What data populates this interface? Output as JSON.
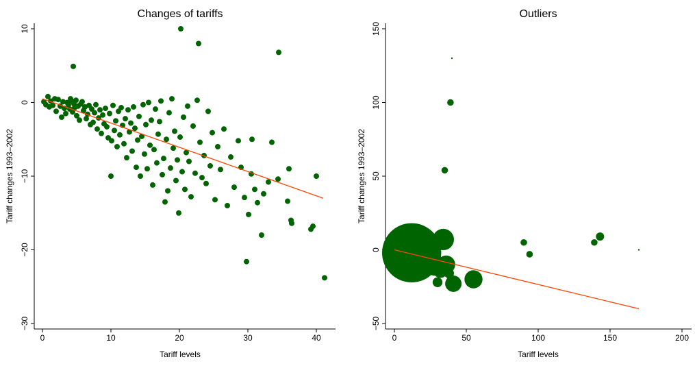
{
  "chart_data": [
    {
      "type": "scatter",
      "title": "Changes of tariffs",
      "xlabel": "Tariff levels",
      "ylabel": "Tariff changes 1993–2002",
      "xlim": [
        0,
        42
      ],
      "ylim": [
        -30,
        10
      ],
      "xticks": [
        "0",
        "10",
        "20",
        "30",
        "40"
      ],
      "yticks": [
        "10",
        "0",
        "−10",
        "−20",
        "−30"
      ],
      "point_color": "#006400",
      "fit_color": "#ff4500",
      "grid": false,
      "fit_line": [
        [
          0,
          0.5
        ],
        [
          41,
          -13
        ]
      ],
      "points": [
        [
          0.2,
          0.1
        ],
        [
          0.5,
          -0.3
        ],
        [
          0.8,
          0.8
        ],
        [
          1.0,
          -0.6
        ],
        [
          1.2,
          0.2
        ],
        [
          1.5,
          -0.4
        ],
        [
          1.8,
          0.5
        ],
        [
          2.0,
          -1.2
        ],
        [
          2.3,
          0.4
        ],
        [
          2.6,
          -0.5
        ],
        [
          2.8,
          -2.0
        ],
        [
          3.0,
          0.1
        ],
        [
          3.2,
          -0.8
        ],
        [
          3.4,
          -1.5
        ],
        [
          3.6,
          0.0
        ],
        [
          3.8,
          -0.3
        ],
        [
          4.0,
          -0.9
        ],
        [
          4.1,
          0.5
        ],
        [
          4.3,
          0.2
        ],
        [
          4.4,
          -1.3
        ],
        [
          4.5,
          4.9
        ],
        [
          4.6,
          -0.2
        ],
        [
          4.7,
          -0.7
        ],
        [
          4.9,
          0.3
        ],
        [
          5.0,
          -1.8
        ],
        [
          5.2,
          -0.5
        ],
        [
          5.4,
          -2.4
        ],
        [
          5.6,
          -0.2
        ],
        [
          5.8,
          0.1
        ],
        [
          6.0,
          -1.1
        ],
        [
          6.2,
          -0.6
        ],
        [
          6.4,
          -2.2
        ],
        [
          6.6,
          -1.6
        ],
        [
          6.8,
          -0.4
        ],
        [
          7.0,
          -3.0
        ],
        [
          7.2,
          -0.9
        ],
        [
          7.4,
          -2.7
        ],
        [
          7.6,
          -1.4
        ],
        [
          7.8,
          -0.3
        ],
        [
          8.0,
          -3.6
        ],
        [
          8.2,
          -2.1
        ],
        [
          8.4,
          -1.0
        ],
        [
          8.6,
          -4.2
        ],
        [
          8.8,
          -1.7
        ],
        [
          9.0,
          -2.9
        ],
        [
          9.2,
          -0.8
        ],
        [
          9.4,
          -3.3
        ],
        [
          9.6,
          -4.8
        ],
        [
          9.8,
          -1.5
        ],
        [
          10.0,
          -10.0
        ],
        [
          10.1,
          -5.2
        ],
        [
          10.3,
          -0.4
        ],
        [
          10.5,
          -3.8
        ],
        [
          10.7,
          -2.5
        ],
        [
          10.9,
          -6.0
        ],
        [
          11.1,
          -1.2
        ],
        [
          11.3,
          -4.4
        ],
        [
          11.5,
          -0.7
        ],
        [
          11.7,
          -3.1
        ],
        [
          11.9,
          -5.6
        ],
        [
          12.1,
          -2.2
        ],
        [
          12.3,
          -7.5
        ],
        [
          12.5,
          -1.0
        ],
        [
          12.7,
          -4.0
        ],
        [
          12.9,
          -2.8
        ],
        [
          13.1,
          -6.6
        ],
        [
          13.3,
          -0.6
        ],
        [
          13.5,
          -3.5
        ],
        [
          13.7,
          -8.8
        ],
        [
          13.9,
          -5.1
        ],
        [
          14.1,
          -1.9
        ],
        [
          14.3,
          -10.0
        ],
        [
          14.5,
          -4.6
        ],
        [
          14.7,
          -0.3
        ],
        [
          14.9,
          -7.0
        ],
        [
          15.1,
          -3.0
        ],
        [
          15.3,
          -9.0
        ],
        [
          15.5,
          0.0
        ],
        [
          15.7,
          -5.8
        ],
        [
          15.9,
          -2.4
        ],
        [
          16.1,
          -11.2
        ],
        [
          16.3,
          -6.4
        ],
        [
          16.5,
          -0.9
        ],
        [
          16.7,
          -8.2
        ],
        [
          16.9,
          -4.3
        ],
        [
          17.1,
          -2.6
        ],
        [
          17.3,
          0.2
        ],
        [
          17.5,
          -9.8
        ],
        [
          17.7,
          -7.6
        ],
        [
          17.9,
          -13.5
        ],
        [
          18.1,
          -5.0
        ],
        [
          18.3,
          -12.0
        ],
        [
          18.5,
          -1.4
        ],
        [
          18.7,
          -8.9
        ],
        [
          18.9,
          0.5
        ],
        [
          19.1,
          -6.2
        ],
        [
          19.3,
          -3.9
        ],
        [
          19.5,
          -10.6
        ],
        [
          19.7,
          -7.8
        ],
        [
          19.9,
          -15.0
        ],
        [
          20.1,
          -4.7
        ],
        [
          20.2,
          10.0
        ],
        [
          20.4,
          -9.4
        ],
        [
          20.6,
          -2.0
        ],
        [
          20.8,
          -11.8
        ],
        [
          21.0,
          -6.8
        ],
        [
          21.2,
          -0.5
        ],
        [
          21.4,
          -8.0
        ],
        [
          21.7,
          -12.8
        ],
        [
          22.0,
          -3.2
        ],
        [
          22.3,
          -9.6
        ],
        [
          22.6,
          0.3
        ],
        [
          22.8,
          8.0
        ],
        [
          23.0,
          -5.4
        ],
        [
          23.3,
          -10.2
        ],
        [
          23.6,
          -7.2
        ],
        [
          23.9,
          -11.0
        ],
        [
          24.2,
          -1.2
        ],
        [
          24.5,
          -8.6
        ],
        [
          24.8,
          -4.1
        ],
        [
          25.2,
          -13.2
        ],
        [
          25.6,
          -6.0
        ],
        [
          26.0,
          -9.1
        ],
        [
          26.5,
          -3.6
        ],
        [
          27.0,
          -14.0
        ],
        [
          27.5,
          -7.4
        ],
        [
          28.0,
          -11.5
        ],
        [
          28.6,
          -5.2
        ],
        [
          29.0,
          -8.8
        ],
        [
          29.5,
          -12.9
        ],
        [
          29.8,
          -21.6
        ],
        [
          30.1,
          -15.2
        ],
        [
          30.5,
          -9.7
        ],
        [
          31.0,
          -11.8
        ],
        [
          31.4,
          -13.6
        ],
        [
          32.0,
          -18.0
        ],
        [
          32.3,
          -12.4
        ],
        [
          33.0,
          -10.8
        ],
        [
          33.5,
          -5.4
        ],
        [
          34.4,
          -10.4
        ],
        [
          34.5,
          6.8
        ],
        [
          35.8,
          -13.4
        ],
        [
          36.0,
          -9.0
        ],
        [
          36.3,
          -16.0
        ],
        [
          36.4,
          -16.4
        ],
        [
          39.2,
          -17.2
        ],
        [
          39.5,
          -16.8
        ],
        [
          40.0,
          -10.0
        ],
        [
          41.2,
          -23.8
        ],
        [
          30.6,
          -5.0
        ]
      ]
    },
    {
      "type": "scatter",
      "title": "Outliers",
      "xlabel": "Tariff levels",
      "ylabel": "Tariff changes 1993–2002",
      "xlim": [
        0,
        200
      ],
      "ylim": [
        -50,
        150
      ],
      "xticks": [
        "0",
        "50",
        "100",
        "150",
        "200"
      ],
      "yticks": [
        "150",
        "100",
        "50",
        "0",
        "−50"
      ],
      "point_color": "#006400",
      "fit_color": "#ff4500",
      "grid": false,
      "fit_line": [
        [
          0,
          0
        ],
        [
          170,
          -40
        ]
      ],
      "weighted_points": [
        [
          12,
          -2,
          36
        ],
        [
          8,
          0,
          24
        ],
        [
          16,
          -4,
          20
        ],
        [
          20,
          -8,
          15
        ],
        [
          24,
          -5,
          12
        ],
        [
          28,
          -12,
          10
        ],
        [
          32,
          -14,
          9
        ],
        [
          34,
          7,
          13
        ],
        [
          36,
          -10,
          11
        ],
        [
          41,
          -23,
          10
        ],
        [
          55,
          -20,
          11
        ],
        [
          30,
          -22,
          6
        ],
        [
          26,
          7,
          6
        ],
        [
          22,
          8,
          5
        ],
        [
          18,
          5,
          7
        ],
        [
          38,
          -16,
          6
        ],
        [
          35,
          54,
          4
        ],
        [
          39,
          100,
          4
        ],
        [
          40,
          130,
          1
        ],
        [
          90,
          5,
          4
        ],
        [
          94,
          -3,
          4
        ],
        [
          139,
          5,
          4
        ],
        [
          143,
          9,
          5
        ],
        [
          170,
          0,
          1
        ]
      ]
    }
  ]
}
